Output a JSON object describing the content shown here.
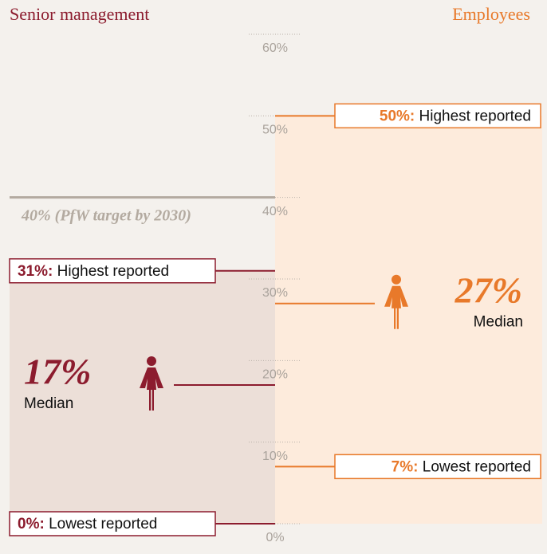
{
  "chart_data": {
    "type": "range",
    "series": [
      {
        "name": "Senior management",
        "color": "#8c1c2e",
        "shade": "#ecdfd8",
        "values": [
          0,
          17,
          31
        ],
        "value_labels": [
          "0%:",
          "17%",
          "31%:"
        ],
        "labels": [
          "Lowest reported",
          "Median",
          "Highest reported"
        ]
      },
      {
        "name": "Employees",
        "color": "#e8792a",
        "shade": "#fdebdc",
        "values": [
          7,
          27,
          50
        ],
        "value_labels": [
          "7%:",
          "27%",
          "50%:"
        ],
        "labels": [
          "Lowest reported",
          "Median",
          "Highest reported"
        ]
      }
    ],
    "ylim": [
      0,
      60
    ],
    "yticks": [
      {
        "value": 0,
        "label": "0%"
      },
      {
        "value": 10,
        "label": "10%"
      },
      {
        "value": 20,
        "label": "20%"
      },
      {
        "value": 30,
        "label": "30%"
      },
      {
        "value": 40,
        "label": "40%"
      },
      {
        "value": 50,
        "label": "50%"
      },
      {
        "value": 60,
        "label": "60%"
      }
    ],
    "target": {
      "value": 40,
      "label": "40% (PfW target by 2030)",
      "color": "#b3aaa0"
    }
  }
}
